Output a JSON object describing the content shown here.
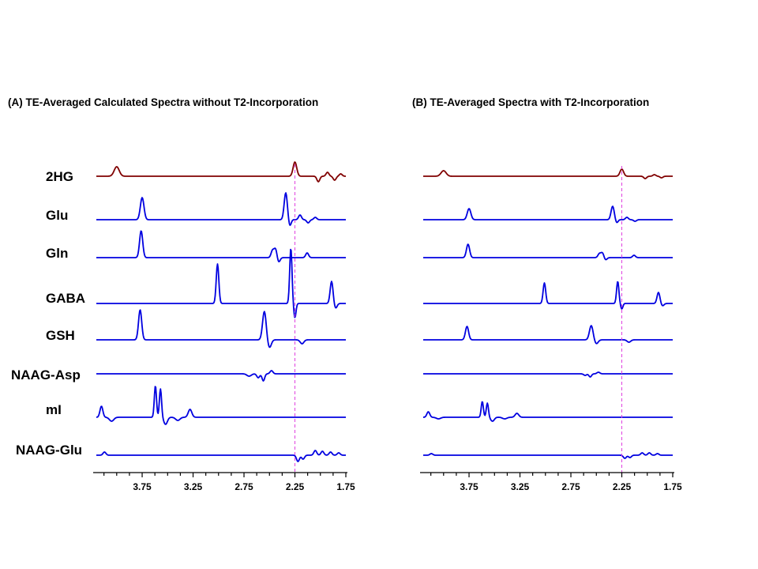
{
  "colors": {
    "hg2": "#800000",
    "metabolite": "#0000e0",
    "marker": "#e040e0",
    "axis": "#000000"
  },
  "chart_data": {
    "type": "line",
    "xlabel": "",
    "ylabel": "",
    "xlim": [
      4.2,
      1.75
    ],
    "marker_ppm": 2.25,
    "tick_values": [
      3.75,
      3.25,
      2.75,
      2.25,
      1.75
    ],
    "tick_labels": [
      "3.75",
      "3.25",
      "2.75",
      "2.25",
      "1.75"
    ],
    "panels": [
      {
        "key": "A",
        "title": "(A) TE-Averaged Calculated Spectra without T2-Incorporation",
        "series": [
          {
            "name": "2HG",
            "color": "#800000",
            "peaks": [
              [
                4.0,
                12,
                0.035
              ],
              [
                2.25,
                18,
                0.025
              ],
              [
                2.02,
                -7,
                0.02
              ],
              [
                1.93,
                5,
                0.02
              ],
              [
                1.86,
                -5,
                0.02
              ],
              [
                1.8,
                3,
                0.02
              ]
            ]
          },
          {
            "name": "Glu",
            "color": "#0000e0",
            "peaks": [
              [
                3.75,
                28,
                0.025
              ],
              [
                2.34,
                34,
                0.022
              ],
              [
                2.3,
                -8,
                0.018
              ],
              [
                2.2,
                6,
                0.02
              ],
              [
                2.12,
                -4,
                0.02
              ],
              [
                2.05,
                3,
                0.02
              ]
            ]
          },
          {
            "name": "Gln",
            "color": "#0000e0",
            "peaks": [
              [
                3.76,
                34,
                0.022
              ],
              [
                2.47,
                9,
                0.02
              ],
              [
                2.44,
                11,
                0.02
              ],
              [
                2.41,
                -6,
                0.02
              ],
              [
                2.13,
                6,
                0.02
              ]
            ]
          },
          {
            "name": "GABA",
            "color": "#0000e0",
            "peaks": [
              [
                3.01,
                50,
                0.018
              ],
              [
                2.29,
                70,
                0.016
              ],
              [
                2.25,
                -18,
                0.015
              ],
              [
                1.89,
                28,
                0.02
              ],
              [
                1.85,
                -6,
                0.02
              ]
            ]
          },
          {
            "name": "GSH",
            "color": "#0000e0",
            "peaks": [
              [
                3.77,
                38,
                0.022
              ],
              [
                2.55,
                36,
                0.025
              ],
              [
                2.5,
                -10,
                0.025
              ],
              [
                2.18,
                -5,
                0.025
              ]
            ]
          },
          {
            "name": "NAAG-Asp",
            "color": "#0000e0",
            "peaks": [
              [
                2.7,
                -3,
                0.03
              ],
              [
                2.61,
                -5,
                0.02
              ],
              [
                2.56,
                -9,
                0.018
              ],
              [
                2.48,
                4,
                0.02
              ]
            ]
          },
          {
            "name": "mI",
            "color": "#0000e0",
            "peaks": [
              [
                4.15,
                14,
                0.02
              ],
              [
                4.05,
                -5,
                0.03
              ],
              [
                3.62,
                40,
                0.015
              ],
              [
                3.57,
                36,
                0.015
              ],
              [
                3.52,
                -9,
                0.025
              ],
              [
                3.4,
                -4,
                0.03
              ],
              [
                3.28,
                10,
                0.025
              ]
            ]
          },
          {
            "name": "NAAG-Glu",
            "color": "#0000e0",
            "peaks": [
              [
                4.12,
                4,
                0.02
              ],
              [
                2.22,
                -8,
                0.02
              ],
              [
                2.17,
                -5,
                0.02
              ],
              [
                2.05,
                6,
                0.02
              ],
              [
                1.98,
                5,
                0.02
              ],
              [
                1.9,
                4,
                0.02
              ],
              [
                1.82,
                3,
                0.02
              ]
            ]
          }
        ]
      },
      {
        "key": "B",
        "title": "(B) TE-Averaged Spectra with T2-Incorporation",
        "series": [
          {
            "name": "2HG",
            "color": "#800000",
            "peaks": [
              [
                4.0,
                7,
                0.035
              ],
              [
                2.25,
                9,
                0.025
              ],
              [
                2.02,
                -3,
                0.02
              ],
              [
                1.93,
                2,
                0.02
              ],
              [
                1.86,
                -2,
                0.02
              ]
            ]
          },
          {
            "name": "Glu",
            "color": "#0000e0",
            "peaks": [
              [
                3.75,
                14,
                0.025
              ],
              [
                2.34,
                17,
                0.022
              ],
              [
                2.3,
                -4,
                0.018
              ],
              [
                2.2,
                3,
                0.02
              ],
              [
                2.12,
                -2,
                0.02
              ]
            ]
          },
          {
            "name": "Gln",
            "color": "#0000e0",
            "peaks": [
              [
                3.76,
                17,
                0.022
              ],
              [
                2.47,
                5,
                0.02
              ],
              [
                2.44,
                6,
                0.02
              ],
              [
                2.41,
                -3,
                0.02
              ],
              [
                2.13,
                3,
                0.02
              ]
            ]
          },
          {
            "name": "GABA",
            "color": "#0000e0",
            "peaks": [
              [
                3.01,
                26,
                0.018
              ],
              [
                2.29,
                28,
                0.016
              ],
              [
                2.25,
                -7,
                0.015
              ],
              [
                1.89,
                14,
                0.02
              ],
              [
                1.85,
                -3,
                0.02
              ]
            ]
          },
          {
            "name": "GSH",
            "color": "#0000e0",
            "peaks": [
              [
                3.77,
                17,
                0.022
              ],
              [
                2.55,
                18,
                0.025
              ],
              [
                2.5,
                -5,
                0.025
              ],
              [
                2.18,
                -3,
                0.025
              ]
            ]
          },
          {
            "name": "NAAG-Asp",
            "color": "#0000e0",
            "peaks": [
              [
                2.61,
                -2,
                0.02
              ],
              [
                2.56,
                -4,
                0.018
              ],
              [
                2.48,
                2,
                0.02
              ]
            ]
          },
          {
            "name": "mI",
            "color": "#0000e0",
            "peaks": [
              [
                4.15,
                7,
                0.02
              ],
              [
                4.05,
                -2,
                0.03
              ],
              [
                3.62,
                20,
                0.015
              ],
              [
                3.57,
                18,
                0.015
              ],
              [
                3.52,
                -5,
                0.025
              ],
              [
                3.4,
                -2,
                0.03
              ],
              [
                3.28,
                5,
                0.025
              ]
            ]
          },
          {
            "name": "NAAG-Glu",
            "color": "#0000e0",
            "peaks": [
              [
                4.12,
                2,
                0.02
              ],
              [
                2.22,
                -4,
                0.02
              ],
              [
                2.17,
                -3,
                0.02
              ],
              [
                2.05,
                3,
                0.02
              ],
              [
                1.98,
                3,
                0.02
              ],
              [
                1.9,
                2,
                0.02
              ]
            ]
          }
        ]
      }
    ]
  }
}
